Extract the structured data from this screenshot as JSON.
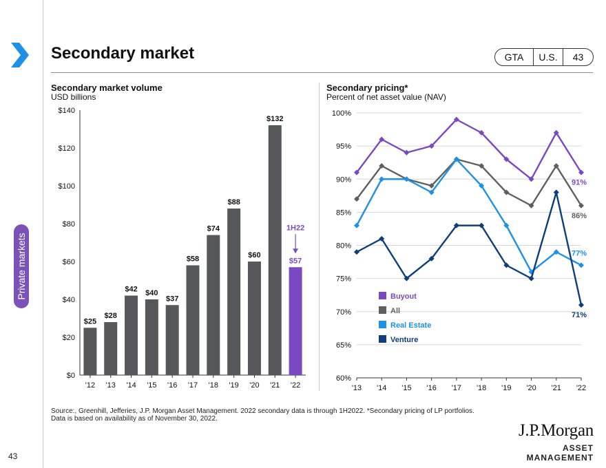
{
  "page": {
    "title": "Secondary market",
    "section_tab": "Private markets",
    "page_number": "43",
    "tags": {
      "gta": "GTA",
      "region": "U.S.",
      "number": "43"
    },
    "footnote_line1": "Source:, Greenhill, Jefferies, J.P. Morgan Asset Management. 2022 secondary data is through 1H2022. *Secondary pricing of LP portfolios.",
    "footnote_line2": "Data is based on availability as of November 30, 2022.",
    "logo_main": "J.P.Morgan",
    "logo_sub": "ASSET MANAGEMENT"
  },
  "chart_data": [
    {
      "type": "bar",
      "title": "Secondary market volume",
      "subtitle": "USD billions",
      "categories": [
        "'12",
        "'13",
        "'14",
        "'15",
        "'16",
        "'17",
        "'18",
        "'19",
        "'20",
        "'21",
        "'22"
      ],
      "values": [
        25,
        28,
        42,
        40,
        37,
        58,
        74,
        88,
        60,
        132,
        57
      ],
      "data_labels": [
        "$25",
        "$28",
        "$42",
        "$40",
        "$37",
        "$58",
        "$74",
        "$88",
        "$60",
        "$132",
        "$57"
      ],
      "y_ticks": [
        0,
        20,
        40,
        60,
        80,
        100,
        120,
        140
      ],
      "y_tick_labels": [
        "$0",
        "$20",
        "$40",
        "$60",
        "$80",
        "$100",
        "$120",
        "$140"
      ],
      "ylim": [
        0,
        140
      ],
      "grid": false,
      "annotation": "1H22",
      "colors": {
        "bar": "#55575a",
        "highlight": "#7a49c2"
      }
    },
    {
      "type": "line",
      "title": "Secondary pricing*",
      "subtitle": "Percent of net asset value (NAV)",
      "x": [
        "'13",
        "'14",
        "'15",
        "'16",
        "'17",
        "'18",
        "'19",
        "'20",
        "'21",
        "'22"
      ],
      "y_ticks": [
        60,
        65,
        70,
        75,
        80,
        85,
        90,
        95,
        100
      ],
      "y_tick_labels": [
        "60%",
        "65%",
        "70%",
        "75%",
        "80%",
        "85%",
        "90%",
        "95%",
        "100%"
      ],
      "ylim": [
        60,
        100
      ],
      "grid": true,
      "legend_position": "bottom-left",
      "series": [
        {
          "name": "Buyout",
          "values": [
            91,
            96,
            94,
            95,
            99,
            97,
            93,
            90,
            97,
            91
          ],
          "end_label": "91%",
          "color": "#7a49c2"
        },
        {
          "name": "All",
          "values": [
            87,
            92,
            90,
            89,
            93,
            92,
            88,
            86,
            92,
            86
          ],
          "end_label": "86%",
          "color": "#5f5f5f"
        },
        {
          "name": "Real Estate",
          "values": [
            83,
            90,
            90,
            88,
            93,
            89,
            83,
            76,
            79,
            77
          ],
          "end_label": "77%",
          "color": "#1e90e6"
        },
        {
          "name": "Venture",
          "values": [
            79,
            81,
            75,
            78,
            83,
            83,
            77,
            75,
            88,
            71
          ],
          "end_label": "71%",
          "color": "#0d3d7a"
        }
      ]
    }
  ]
}
